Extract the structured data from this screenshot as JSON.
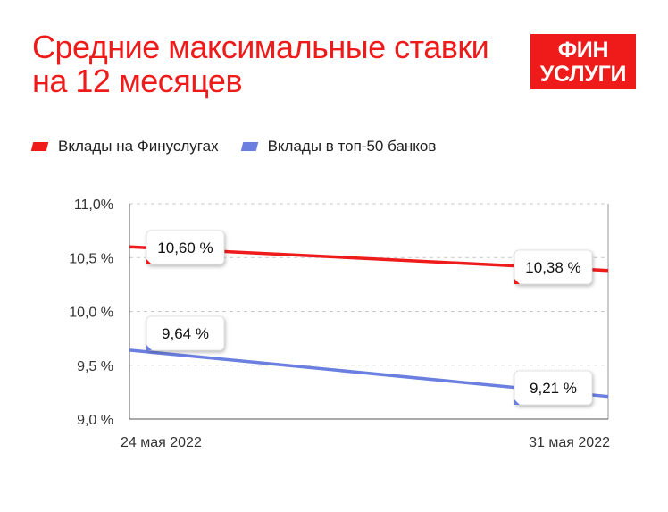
{
  "header": {
    "title_line1": "Средние максимальные ставки",
    "title_line2": "на 12 месяцев",
    "logo_line1": "ФИН",
    "logo_line2": "УСЛУГИ"
  },
  "colors": {
    "accent": "#ef1b1b",
    "series_red": "#ef1b1b",
    "series_blue": "#6b7fe0"
  },
  "chart_data": {
    "type": "line",
    "x": [
      "24 мая 2022",
      "31 мая 2022"
    ],
    "ylim": [
      9.0,
      11.0
    ],
    "yticks": [
      11.0,
      10.5,
      10.0,
      9.5,
      9.0
    ],
    "ytick_labels": [
      "11,0%",
      "10,5 %",
      "10,0 %",
      "9,5 %",
      "9,0 %"
    ],
    "grid": true,
    "legend_position": "top-left",
    "series": [
      {
        "name": "Вклады на Финуслугах",
        "color": "#ef1b1b",
        "values": [
          10.6,
          10.38
        ],
        "labels": [
          "10,60 %",
          "10,38 %"
        ]
      },
      {
        "name": "Вклады в топ-50 банков",
        "color": "#6b7fe0",
        "values": [
          9.64,
          9.21
        ],
        "labels": [
          "9,64 %",
          "9,21 %"
        ]
      }
    ]
  }
}
